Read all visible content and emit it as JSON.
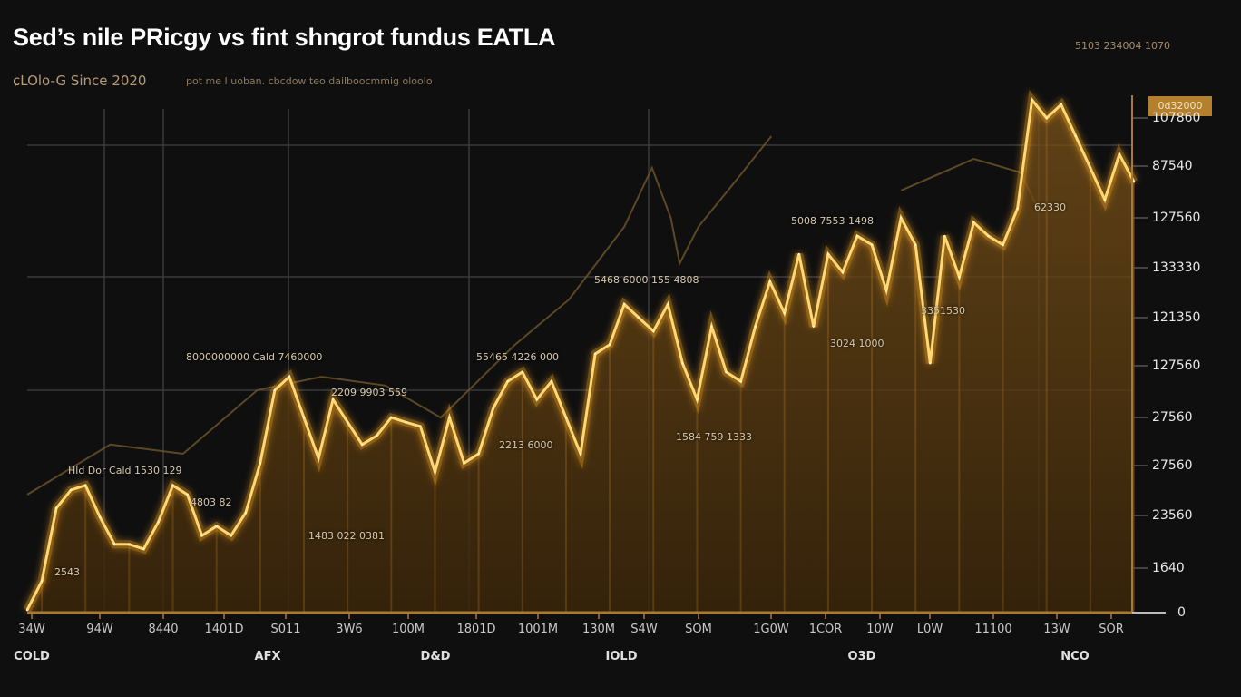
{
  "chart_data": {
    "type": "area",
    "title": "Sed’s nile PRicgy vs fint shngrot fundus EATLA",
    "subtitle": "ɕLOlo-G Since 2020",
    "subnote": "pot me I uoban. cbcdow teo dailboocmmig oloolo",
    "top_right_note": "5103 234004 1070",
    "current_value_badge": "0d32000",
    "y_axis_labels": [
      "0",
      "1640",
      "23560",
      "27560",
      "27560",
      "127560",
      "121350",
      "133330",
      "127560",
      "87540",
      "107860"
    ],
    "x_tick_labels": [
      "34W",
      "94W",
      "8440",
      "1401D",
      "S011",
      "3W6",
      "100M",
      "1801D",
      "1001M",
      "130M",
      "S4W",
      "SOM",
      "1G0W",
      "1COR",
      "10W",
      "L0W",
      "11100",
      "13W",
      "SOR"
    ],
    "category_labels": [
      "COLD",
      "AFX",
      "D&D",
      "IOLD",
      "O3D",
      "NCO"
    ],
    "ylim": [
      0,
      100
    ],
    "grid": true,
    "accent_color": "#f5b73a",
    "fill_color": "#5a3a12",
    "series": [
      {
        "name": "main",
        "values": [
          0.5,
          6.1,
          20.2,
          23.7,
          24.6,
          18.4,
          13.2,
          13.2,
          12.3,
          17.5,
          24.6,
          22.8,
          14.9,
          16.7,
          14.9,
          19.3,
          28.9,
          43.0,
          45.6,
          37.7,
          29.8,
          41.2,
          36.8,
          32.5,
          34.2,
          37.7,
          36.8,
          36.0,
          27.2,
          37.7,
          28.9,
          30.7,
          39.5,
          44.7,
          46.5,
          41.2,
          44.7,
          37.7,
          30.7,
          50.0,
          51.8,
          59.6,
          57.0,
          54.4,
          59.6,
          48.2,
          41.2,
          55.3,
          46.5,
          44.7,
          55.3,
          64.0,
          57.9,
          69.3,
          55.3,
          69.3,
          65.8,
          72.8,
          71.1,
          62.3,
          76.3,
          71.1,
          48.2,
          72.8,
          64.9,
          75.4,
          72.8,
          71.1,
          78.1,
          99.1,
          95.6,
          98.2,
          92.1,
          86.0,
          79.8,
          88.6,
          83.3
        ]
      },
      {
        "name": "secondary-a",
        "points": [
          [
            0,
            22.8
          ],
          [
            5.7,
            32.5
          ],
          [
            10.7,
            30.7
          ],
          [
            15.8,
            43.0
          ],
          [
            20.2,
            45.6
          ],
          [
            24.6,
            43.9
          ],
          [
            28.4,
            37.7
          ],
          [
            33.5,
            51.8
          ],
          [
            37.2,
            60.5
          ],
          [
            41.0,
            74.6
          ],
          [
            42.9,
            86.0
          ],
          [
            44.2,
            76.3
          ],
          [
            44.8,
            67.5
          ],
          [
            46.1,
            74.6
          ],
          [
            48.6,
            83.3
          ],
          [
            51.1,
            92.1
          ]
        ]
      },
      {
        "name": "secondary-b",
        "points": [
          [
            60,
            81.6
          ],
          [
            65,
            87.7
          ],
          [
            68.2,
            85.1
          ],
          [
            69.4,
            78.1
          ]
        ]
      }
    ],
    "annotations": [
      "5008 7553 1498",
      "5468 6000 155 4808",
      "3351530",
      "3024 1000",
      "8000000000 Cald 7460000",
      "55465 4226 000",
      "2209 9903 559",
      "1584 759 1333",
      "2213 6000",
      "Hld Dor Cald 1530 129",
      "4803 82",
      "1483 022 0381",
      "2543",
      "62330"
    ]
  }
}
